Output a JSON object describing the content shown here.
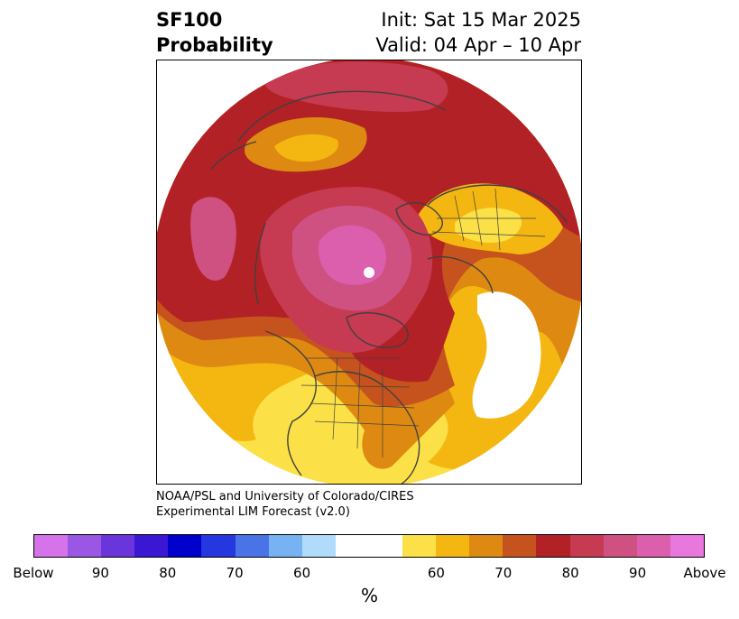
{
  "header": {
    "title_line1": "SF100",
    "title_line2": "Probability",
    "init": "Init: Sat 15 Mar 2025",
    "valid": "Valid: 04 Apr – 10 Apr"
  },
  "map": {
    "projection": "polar stereographic (North Pole)",
    "features": [
      "continents",
      "country borders",
      "US state borders",
      "Canadian province borders"
    ]
  },
  "credit": {
    "line1": "NOAA/PSL and University of Colorado/CIRES",
    "line2": "Experimental LIM Forecast (v2.0)"
  },
  "colorbar": {
    "colors": [
      "#d673ea",
      "#9a57e3",
      "#6a36dc",
      "#3a17d3",
      "#0000cd",
      "#2537de",
      "#4b73e8",
      "#77b2f2",
      "#b1dbfb",
      "#ffffff",
      "#ffffff",
      "#fbe147",
      "#f4b712",
      "#de8a12",
      "#c6521d",
      "#b22125",
      "#c63a52",
      "#cf5182",
      "#db5fad",
      "#e878dd"
    ],
    "tick_labels": [
      "Below",
      "90",
      "80",
      "70",
      "60",
      "60",
      "70",
      "80",
      "90",
      "Above"
    ],
    "units": "%"
  },
  "legend_colors": {
    "above_60": "#fbe147",
    "above_65": "#f4b712",
    "above_70": "#de8a12",
    "above_75": "#c6521d",
    "above_80": "#b22125",
    "above_85": "#c63a52",
    "above_90": "#cf5182",
    "above_95": "#db5fad",
    "border": "#404040"
  }
}
